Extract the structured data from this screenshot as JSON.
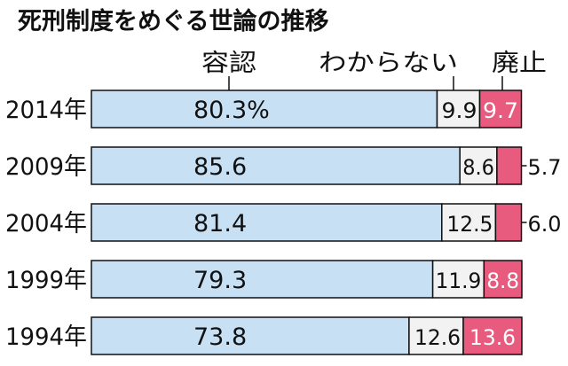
{
  "chart_data": {
    "type": "bar",
    "stacked": true,
    "orientation": "horizontal",
    "title": "死刑制度をめぐる世論の推移",
    "categories": [
      "2014年",
      "2009年",
      "2004年",
      "1999年",
      "1994年"
    ],
    "series": [
      {
        "name": "容認",
        "values": [
          80.3,
          85.6,
          81.4,
          79.3,
          73.8
        ],
        "color": "#c8e0f4"
      },
      {
        "name": "わからない",
        "values": [
          9.9,
          8.6,
          12.5,
          11.9,
          12.6
        ],
        "color": "#f2f2f2"
      },
      {
        "name": "廃止",
        "values": [
          9.7,
          5.7,
          6.0,
          8.8,
          13.6
        ],
        "color": "#e85a7e"
      }
    ],
    "value_labels": [
      [
        "80.3%",
        "9.9",
        "9.7"
      ],
      [
        "85.6",
        "8.6",
        "5.7"
      ],
      [
        "81.4",
        "12.5",
        "6.0"
      ],
      [
        "79.3",
        "11.9",
        "8.8"
      ],
      [
        "73.8",
        "12.6",
        "13.6"
      ]
    ],
    "outside_label_rows": [
      1,
      2
    ],
    "xlim": [
      0,
      100
    ],
    "legend": "top, labels with leader lines above first bar",
    "grid": false
  }
}
